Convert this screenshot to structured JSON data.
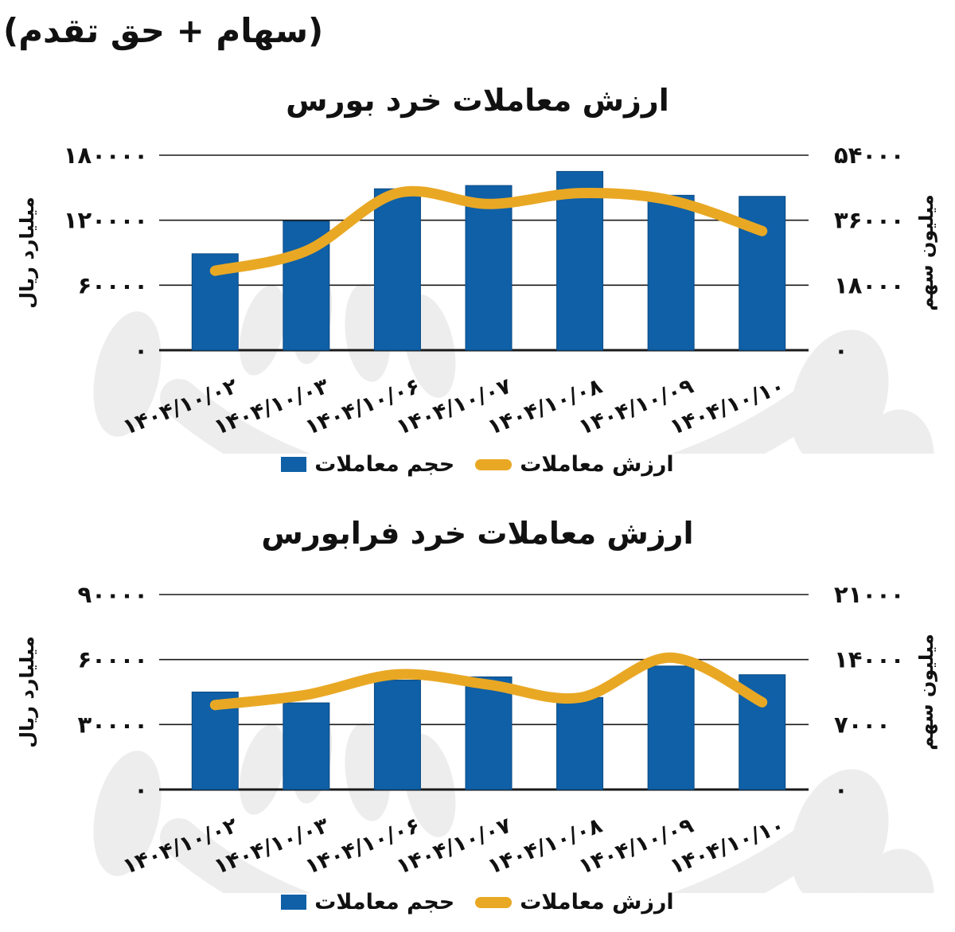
{
  "header": {
    "note": "(سهام + حق تقدم)"
  },
  "colors": {
    "bar": "#0f60a6",
    "bar_edge": "#0a4a85",
    "line": "#e9a824",
    "text": "#111111",
    "grid": "#1a1a1a",
    "watermark": "#ededed"
  },
  "chart_data": [
    {
      "type": "bar+line",
      "title": "ارزش معاملات خرد بورس",
      "categories": [
        "۱۴۰۴/۱۰/۰۲",
        "۱۴۰۴/۱۰/۰۳",
        "۱۴۰۴/۱۰/۰۶",
        "۱۴۰۴/۱۰/۰۷",
        "۱۴۰۴/۱۰/۰۸",
        "۱۴۰۴/۱۰/۰۹",
        "۱۴۰۴/۱۰/۱۰"
      ],
      "series": [
        {
          "name": "حجم معاملات",
          "type": "bar",
          "axis": "left",
          "values": [
            89000,
            119000,
            149000,
            152000,
            165000,
            143000,
            142000
          ]
        },
        {
          "name": "ارزش معاملات",
          "type": "line",
          "axis": "right",
          "values": [
            22000,
            27500,
            43500,
            40500,
            43500,
            41500,
            33000
          ]
        }
      ],
      "left_axis": {
        "label": "میلیارد ریال",
        "lim": [
          0,
          180000
        ],
        "tick_labels_top_to_bottom": [
          "۱۸۰۰۰۰",
          "۱۲۰۰۰۰",
          "۶۰۰۰۰",
          "۰"
        ]
      },
      "right_axis": {
        "label": "میلیون سهم",
        "lim": [
          0,
          54000
        ],
        "tick_labels_top_to_bottom": [
          "۵۴۰۰۰",
          "۳۶۰۰۰",
          "۱۸۰۰۰",
          "۰"
        ]
      },
      "grid": true,
      "legend_position": "bottom"
    },
    {
      "type": "bar+line",
      "title": "ارزش معاملات خرد فرابورس",
      "categories": [
        "۱۴۰۴/۱۰/۰۲",
        "۱۴۰۴/۱۰/۰۳",
        "۱۴۰۴/۱۰/۰۶",
        "۱۴۰۴/۱۰/۰۷",
        "۱۴۰۴/۱۰/۰۸",
        "۱۴۰۴/۱۰/۰۹",
        "۱۴۰۴/۱۰/۱۰"
      ],
      "series": [
        {
          "name": "حجم معاملات",
          "type": "bar",
          "axis": "left",
          "values": [
            45000,
            40000,
            50500,
            52000,
            42500,
            57000,
            53000
          ]
        },
        {
          "name": "ارزش معاملات",
          "type": "line",
          "axis": "right",
          "values": [
            9100,
            10200,
            12400,
            11300,
            9900,
            14200,
            9400
          ]
        }
      ],
      "left_axis": {
        "label": "میلیارد ریال",
        "lim": [
          0,
          90000
        ],
        "tick_labels_top_to_bottom": [
          "۹۰۰۰۰",
          "۶۰۰۰۰",
          "۳۰۰۰۰",
          "۰"
        ]
      },
      "right_axis": {
        "label": "میلیون سهم",
        "lim": [
          0,
          21000
        ],
        "tick_labels_top_to_bottom": [
          "۲۱۰۰۰",
          "۱۴۰۰۰",
          "۷۰۰۰",
          "۰"
        ]
      },
      "grid": true,
      "legend_position": "bottom"
    }
  ]
}
